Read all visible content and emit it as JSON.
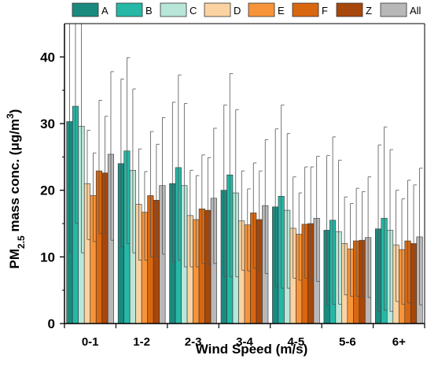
{
  "chart_data": {
    "type": "bar",
    "title": "",
    "xlabel": "Wind  Speed (m/s)",
    "ylabel_parts": {
      "base": "PM",
      "sub": "2.5",
      "mid": " mass conc. (",
      "unit_mu": "μ",
      "unit_g": "g/m",
      "sup": "3",
      "end": ")"
    },
    "ylim": [
      0,
      45
    ],
    "yticks": [
      0,
      10,
      20,
      30,
      40
    ],
    "categories": [
      "0-1",
      "1-2",
      "2-3",
      "3-4",
      "4-5",
      "5-6",
      "6+"
    ],
    "legend_position": "top",
    "grid": false,
    "series": [
      {
        "name": "A",
        "color": "#1a8a7f",
        "values": [
          30.3,
          24.0,
          21.0,
          20.0,
          17.5,
          14.0,
          14.2
        ],
        "err_hi": [
          45.0,
          36.7,
          33.2,
          32.8,
          29.2,
          25.2,
          26.8
        ],
        "err_lo": [
          10.7,
          11.5,
          9.2,
          7.0,
          5.5,
          2.8,
          1.8
        ]
      },
      {
        "name": "B",
        "color": "#25b8a6",
        "values": [
          32.6,
          25.9,
          23.4,
          22.3,
          19.1,
          15.5,
          15.8
        ],
        "err_hi": [
          45.0,
          39.9,
          37.3,
          37.5,
          32.8,
          28.0,
          29.5
        ],
        "err_lo": [
          15.0,
          12.0,
          9.5,
          7.0,
          5.3,
          2.9,
          2.0
        ]
      },
      {
        "name": "C",
        "color": "#b8e6d8",
        "values": [
          29.6,
          23.0,
          20.7,
          19.6,
          17.0,
          13.8,
          14.0
        ],
        "err_hi": [
          45.0,
          35.2,
          33.0,
          32.1,
          28.5,
          24.5,
          26.1
        ],
        "err_lo": [
          10.6,
          10.6,
          8.5,
          7.0,
          5.3,
          2.9,
          1.8
        ]
      },
      {
        "name": "D",
        "color": "#fbd3a2",
        "values": [
          21.0,
          17.9,
          16.2,
          15.4,
          14.3,
          12.0,
          11.8
        ],
        "err_hi": [
          29.0,
          26.2,
          23.0,
          22.9,
          22.0,
          19.0,
          20.0
        ],
        "err_lo": [
          12.6,
          9.5,
          8.5,
          8.0,
          6.8,
          4.3,
          3.3
        ]
      },
      {
        "name": "E",
        "color": "#f7943a",
        "values": [
          19.2,
          16.7,
          15.6,
          14.8,
          13.4,
          11.2,
          11.1
        ],
        "err_hi": [
          25.6,
          22.8,
          22.2,
          20.2,
          19.6,
          18.0,
          18.7
        ],
        "err_lo": [
          12.3,
          9.5,
          8.5,
          7.9,
          6.5,
          4.1,
          2.9
        ]
      },
      {
        "name": "F",
        "color": "#d9670f",
        "values": [
          22.9,
          19.2,
          17.2,
          16.6,
          14.9,
          12.4,
          12.4
        ],
        "err_hi": [
          33.5,
          28.8,
          25.3,
          24.1,
          23.5,
          20.3,
          21.5
        ],
        "err_lo": [
          13.5,
          10.0,
          9.0,
          8.3,
          6.8,
          4.1,
          3.1
        ]
      },
      {
        "name": "Z",
        "color": "#a8470a",
        "values": [
          22.6,
          18.5,
          17.0,
          15.6,
          15.0,
          12.5,
          12.0
        ],
        "err_hi": [
          31.1,
          26.9,
          24.9,
          22.9,
          23.5,
          19.8,
          20.8
        ],
        "err_lo": [
          13.5,
          10.0,
          8.9,
          8.0,
          6.5,
          4.0,
          2.9
        ]
      },
      {
        "name": "All",
        "color": "#b8b8b8",
        "values": [
          25.4,
          20.7,
          18.8,
          17.7,
          15.8,
          12.9,
          13.0
        ],
        "err_hi": [
          37.8,
          30.9,
          29.3,
          27.6,
          25.1,
          22.0,
          23.3
        ],
        "err_lo": [
          12.5,
          10.4,
          9.0,
          7.5,
          6.3,
          3.9,
          2.8
        ]
      }
    ]
  }
}
